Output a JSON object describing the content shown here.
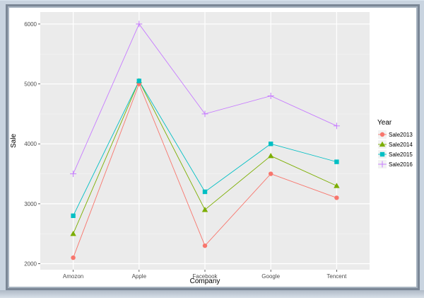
{
  "chart_data": {
    "type": "line",
    "title": "",
    "xlabel": "Company",
    "ylabel": "Sale",
    "categories": [
      "Amozon",
      "Apple",
      "Facebook",
      "Google",
      "Tencent"
    ],
    "ylim": [
      1900,
      6200
    ],
    "yticks": [
      2000,
      3000,
      4000,
      5000,
      6000
    ],
    "legend_title": "Year",
    "legend_position": "right",
    "grid": true,
    "series": [
      {
        "name": "Sale2013",
        "color": "#f8766d",
        "marker": "circle",
        "values": [
          2100,
          5000,
          2300,
          3500,
          3100
        ]
      },
      {
        "name": "Sale2014",
        "color": "#7cae00",
        "marker": "triangle",
        "values": [
          2500,
          5050,
          2900,
          3800,
          3300
        ]
      },
      {
        "name": "Sale2015",
        "color": "#00bfc4",
        "marker": "square",
        "values": [
          2800,
          5050,
          3200,
          4000,
          3700
        ]
      },
      {
        "name": "Sale2016",
        "color": "#c77cff",
        "marker": "plus",
        "values": [
          3500,
          6000,
          4500,
          4800,
          4300
        ]
      }
    ]
  }
}
